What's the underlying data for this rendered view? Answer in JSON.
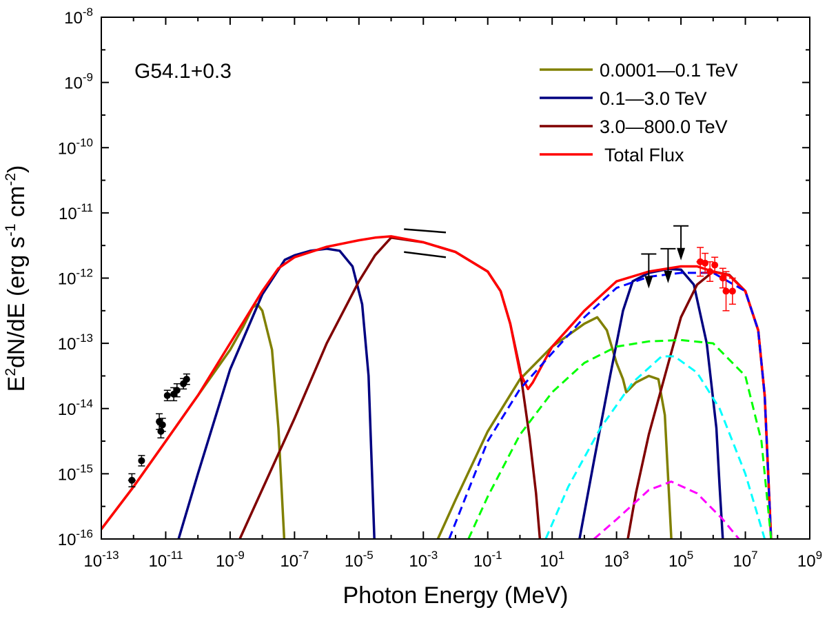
{
  "chart_data": {
    "type": "line",
    "title": "",
    "annotation": "G54.1+0.3",
    "xlabel": "Photon Energy (MeV)",
    "ylabel_parts": [
      "E",
      "2",
      "dN/dE (erg s",
      "-1",
      " cm",
      "-2",
      ")"
    ],
    "x_scale": "log",
    "y_scale": "log",
    "xlim": [
      1e-13,
      1000000000.0
    ],
    "ylim": [
      1e-16,
      1e-08
    ],
    "x_tick_exponents": [
      -13,
      -11,
      -9,
      -7,
      -5,
      -3,
      -1,
      1,
      3,
      5,
      7,
      9
    ],
    "y_tick_exponents": [
      -16,
      -15,
      -14,
      -13,
      -12,
      -11,
      -10,
      -9,
      -8
    ],
    "tick_base": "10",
    "legend_position": "top-right",
    "legend": [
      {
        "label": "0.0001—0.1 TeV",
        "color": "#808000"
      },
      {
        "label": "0.1—3.0 TeV",
        "color": "#000080"
      },
      {
        "label": "3.0—800.0 TeV",
        "color": "#800000"
      },
      {
        "label": " Total Flux",
        "color": "#ff0000"
      }
    ],
    "series": [
      {
        "name": "0.0001—0.1 TeV",
        "color": "#808000",
        "width": 3.5,
        "dash": "",
        "points": [
          [
            -13,
            -15.85
          ],
          [
            -12,
            -15.2
          ],
          [
            -11,
            -14.5
          ],
          [
            -10,
            -13.8
          ],
          [
            -9,
            -13.1
          ],
          [
            -8.6,
            -12.75
          ],
          [
            -8.3,
            -12.45
          ],
          [
            -8.15,
            -12.4
          ],
          [
            -8,
            -12.5
          ],
          [
            -7.7,
            -13.1
          ],
          [
            -7.5,
            -14.3
          ],
          [
            -7.32,
            -16
          ]
        ]
      },
      {
        "name": "0.0001—0.1 TeV",
        "color": "#808000",
        "width": 3.5,
        "dash": "",
        "points": [
          [
            -2.55,
            -16
          ],
          [
            -2,
            -15.4
          ],
          [
            -1,
            -14.35
          ],
          [
            0,
            -13.55
          ],
          [
            1,
            -13.05
          ],
          [
            2,
            -12.7
          ],
          [
            2.4,
            -12.6
          ],
          [
            2.7,
            -12.8
          ],
          [
            3,
            -13.3
          ],
          [
            3.2,
            -13.55
          ],
          [
            3.3,
            -13.75
          ],
          [
            3.6,
            -13.6
          ],
          [
            4,
            -13.5
          ],
          [
            4.3,
            -13.55
          ],
          [
            4.5,
            -14.1
          ],
          [
            4.7,
            -16
          ]
        ]
      },
      {
        "name": "0.1—3.0 TeV",
        "color": "#000080",
        "width": 3.5,
        "dash": "",
        "points": [
          [
            -10.6,
            -16
          ],
          [
            -10,
            -15
          ],
          [
            -9,
            -13.4
          ],
          [
            -8,
            -12.25
          ],
          [
            -7.3,
            -11.72
          ],
          [
            -7,
            -11.65
          ],
          [
            -6.5,
            -11.58
          ],
          [
            -6,
            -11.55
          ],
          [
            -5.6,
            -11.58
          ],
          [
            -5.2,
            -11.82
          ],
          [
            -4.9,
            -12.4
          ],
          [
            -4.7,
            -13.5
          ],
          [
            -4.52,
            -16
          ]
        ]
      },
      {
        "name": "0.1—3.0 TeV",
        "color": "#000080",
        "width": 3.5,
        "dash": "",
        "points": [
          [
            1.85,
            -16
          ],
          [
            2.3,
            -14.8
          ],
          [
            2.8,
            -13.5
          ],
          [
            3.2,
            -12.5
          ],
          [
            3.5,
            -12.05
          ],
          [
            4,
            -11.92
          ],
          [
            4.6,
            -11.86
          ],
          [
            5,
            -11.87
          ],
          [
            5.4,
            -12.1
          ],
          [
            5.8,
            -13
          ],
          [
            6.1,
            -14.3
          ],
          [
            6.2,
            -15.2
          ],
          [
            6.3,
            -16
          ]
        ]
      },
      {
        "name": "3.0—800.0 TeV",
        "color": "#800000",
        "width": 3.5,
        "dash": "",
        "points": [
          [
            -8.7,
            -16
          ],
          [
            -7,
            -14.15
          ],
          [
            -6,
            -13
          ],
          [
            -5,
            -12.05
          ],
          [
            -4.5,
            -11.65
          ],
          [
            -4,
            -11.38
          ],
          [
            -3,
            -11.45
          ],
          [
            -2,
            -11.6
          ],
          [
            -1,
            -11.9
          ],
          [
            -0.6,
            -12.2
          ],
          [
            -0.3,
            -12.7
          ],
          [
            0,
            -13.4
          ],
          [
            0.3,
            -14.45
          ],
          [
            0.5,
            -15.3
          ],
          [
            0.62,
            -16
          ]
        ]
      },
      {
        "name": "3.0—800.0 TeV",
        "color": "#800000",
        "width": 3.5,
        "dash": "",
        "points": [
          [
            3.35,
            -16
          ],
          [
            3.6,
            -15.3
          ],
          [
            4,
            -14.4
          ],
          [
            4.5,
            -13.5
          ],
          [
            5,
            -12.6
          ],
          [
            5.5,
            -12.1
          ],
          [
            6,
            -11.9
          ],
          [
            6.5,
            -11.95
          ],
          [
            7,
            -12.2
          ],
          [
            7.4,
            -12.8
          ],
          [
            7.6,
            -13.8
          ],
          [
            7.8,
            -16
          ]
        ]
      },
      {
        "name": " Total Flux",
        "color": "#ff0000",
        "width": 3.5,
        "dash": "",
        "points": [
          [
            -13,
            -15.85
          ],
          [
            -12,
            -15.2
          ],
          [
            -11,
            -14.5
          ],
          [
            -10,
            -13.8
          ],
          [
            -9,
            -13
          ],
          [
            -8.5,
            -12.6
          ],
          [
            -8,
            -12.2
          ],
          [
            -7.5,
            -11.85
          ],
          [
            -7,
            -11.68
          ],
          [
            -6,
            -11.52
          ],
          [
            -5,
            -11.42
          ],
          [
            -4.5,
            -11.38
          ],
          [
            -4,
            -11.36
          ],
          [
            -3,
            -11.45
          ],
          [
            -2,
            -11.6
          ],
          [
            -1,
            -11.9
          ],
          [
            -0.6,
            -12.2
          ],
          [
            -0.3,
            -12.7
          ],
          [
            0,
            -13.45
          ],
          [
            0.25,
            -13.7
          ],
          [
            0.4,
            -13.6
          ],
          [
            1,
            -13.05
          ],
          [
            2,
            -12.5
          ],
          [
            3,
            -12.05
          ],
          [
            4,
            -11.9
          ],
          [
            5,
            -11.82
          ],
          [
            5.5,
            -11.82
          ],
          [
            6,
            -11.9
          ],
          [
            6.5,
            -11.96
          ],
          [
            7,
            -12.2
          ],
          [
            7.4,
            -12.8
          ],
          [
            7.6,
            -13.8
          ],
          [
            7.8,
            -16
          ]
        ]
      },
      {
        "name": "",
        "color": "#0000ff",
        "width": 3,
        "dash": "12,7",
        "points": [
          [
            -2.2,
            -16
          ],
          [
            -1,
            -14.5
          ],
          [
            0,
            -13.7
          ],
          [
            1,
            -13.15
          ],
          [
            2,
            -12.6
          ],
          [
            3,
            -12.15
          ],
          [
            4,
            -11.98
          ],
          [
            5,
            -11.92
          ],
          [
            6,
            -11.92
          ],
          [
            7,
            -12.2
          ],
          [
            7.4,
            -12.8
          ],
          [
            7.6,
            -13.8
          ],
          [
            7.8,
            -16
          ]
        ]
      },
      {
        "name": "",
        "color": "#00ff00",
        "width": 3,
        "dash": "12,7",
        "points": [
          [
            -1.6,
            -16
          ],
          [
            -1,
            -15.35
          ],
          [
            0,
            -14.4
          ],
          [
            1,
            -13.75
          ],
          [
            2,
            -13.3
          ],
          [
            3,
            -13.05
          ],
          [
            4,
            -12.97
          ],
          [
            5,
            -12.95
          ],
          [
            6,
            -13.0
          ],
          [
            7,
            -13.5
          ],
          [
            7.5,
            -14.5
          ],
          [
            7.8,
            -16
          ]
        ]
      },
      {
        "name": "",
        "color": "#00ffff",
        "width": 3,
        "dash": "12,7",
        "points": [
          [
            0.8,
            -16
          ],
          [
            1.5,
            -15.2
          ],
          [
            2.5,
            -14.3
          ],
          [
            3.5,
            -13.6
          ],
          [
            4.4,
            -13.2
          ],
          [
            4.8,
            -13.2
          ],
          [
            5.5,
            -13.45
          ],
          [
            6.2,
            -14.0
          ],
          [
            7,
            -15.0
          ],
          [
            7.6,
            -16
          ]
        ]
      },
      {
        "name": "",
        "color": "#ff00ff",
        "width": 3,
        "dash": "12,7",
        "points": [
          [
            2.3,
            -16
          ],
          [
            3,
            -15.7
          ],
          [
            4,
            -15.25
          ],
          [
            4.7,
            -15.12
          ],
          [
            5.5,
            -15.3
          ],
          [
            6.3,
            -15.7
          ],
          [
            6.8,
            -16
          ]
        ]
      }
    ],
    "data_points": [
      {
        "color": "#000000",
        "points": [
          [
            -12.05,
            -15.1,
            0.12,
            0.1
          ],
          [
            -11.75,
            -14.8,
            0.1,
            0.08
          ],
          [
            -11.2,
            -14.2,
            0.1,
            0.12
          ],
          [
            -11.15,
            -14.35,
            0.1,
            0.1
          ],
          [
            -11.1,
            -14.25,
            0.1,
            0.1
          ],
          [
            -10.95,
            -13.8,
            0.08,
            0.08
          ],
          [
            -10.75,
            -13.78,
            0.1,
            0.1
          ],
          [
            -10.65,
            -13.72,
            0.1,
            0.1
          ],
          [
            -10.45,
            -13.62,
            0.1,
            0.08
          ],
          [
            -10.35,
            -13.55,
            0.08,
            0.08
          ]
        ]
      },
      {
        "color": "#ff0000",
        "points": [
          [
            5.6,
            -11.75,
            0.12,
            0.22
          ],
          [
            5.75,
            -11.77,
            0.1,
            0.15
          ],
          [
            5.9,
            -11.9,
            0.1,
            0.15
          ],
          [
            6.05,
            -11.8,
            0.1,
            0.12
          ],
          [
            6.3,
            -12.0,
            0.1,
            0.15
          ],
          [
            6.4,
            -12.2,
            0.1,
            0.3
          ],
          [
            6.6,
            -12.2,
            0.1,
            0.2
          ]
        ]
      }
    ],
    "upper_limits": [
      {
        "x": 4.0,
        "y": -11.63,
        "color": "#000000"
      },
      {
        "x": 4.6,
        "y": -11.55,
        "color": "#000000"
      },
      {
        "x": 5.0,
        "y": -11.2,
        "color": "#000000"
      }
    ],
    "butterfly": {
      "x": [
        -3.6,
        -2.3
      ],
      "y_low": [
        -11.6,
        -11.3
      ],
      "y_high": [
        -11.25,
        -11.68
      ],
      "color": "#000000"
    }
  }
}
